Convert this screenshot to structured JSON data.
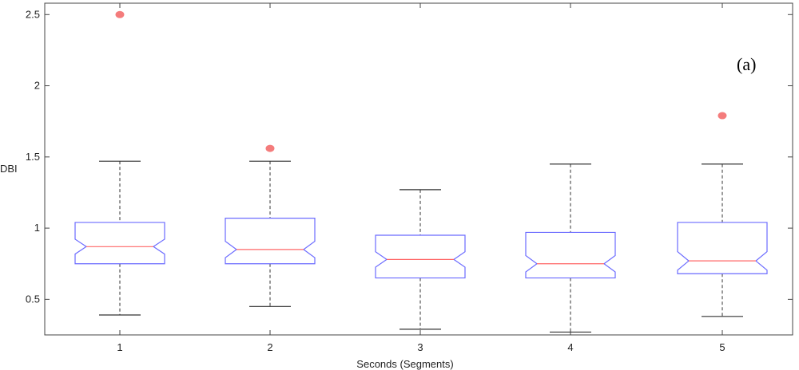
{
  "chart_data": {
    "type": "boxplot",
    "title": "",
    "panel_label": "(a)",
    "xlabel": "Seconds (Segments)",
    "ylabel": "DBI",
    "categories": [
      "1",
      "2",
      "3",
      "4",
      "5"
    ],
    "yticks": [
      "0.5",
      "1",
      "1.5",
      "2",
      "2.5"
    ],
    "ylim": [
      0.25,
      2.58
    ],
    "grid": false,
    "legend": "none",
    "boxes": [
      {
        "category": "1",
        "whisker_low": 0.39,
        "q1": 0.75,
        "median": 0.87,
        "q3": 1.04,
        "whisker_high": 1.47,
        "outliers": [
          2.5
        ]
      },
      {
        "category": "2",
        "whisker_low": 0.45,
        "q1": 0.75,
        "median": 0.85,
        "q3": 1.07,
        "whisker_high": 1.47,
        "outliers": [
          1.56
        ]
      },
      {
        "category": "3",
        "whisker_low": 0.29,
        "q1": 0.65,
        "median": 0.78,
        "q3": 0.95,
        "whisker_high": 1.27,
        "outliers": []
      },
      {
        "category": "4",
        "whisker_low": 0.27,
        "q1": 0.65,
        "median": 0.75,
        "q3": 0.97,
        "whisker_high": 1.45,
        "outliers": []
      },
      {
        "category": "5",
        "whisker_low": 0.38,
        "q1": 0.68,
        "median": 0.77,
        "q3": 1.04,
        "whisker_high": 1.45,
        "outliers": [
          1.79
        ]
      }
    ],
    "colors": {
      "box": "#6b6bff",
      "median": "#ff6666",
      "whisker": "#333333",
      "outlier": "#f47c7c",
      "axis": "#444444"
    }
  }
}
